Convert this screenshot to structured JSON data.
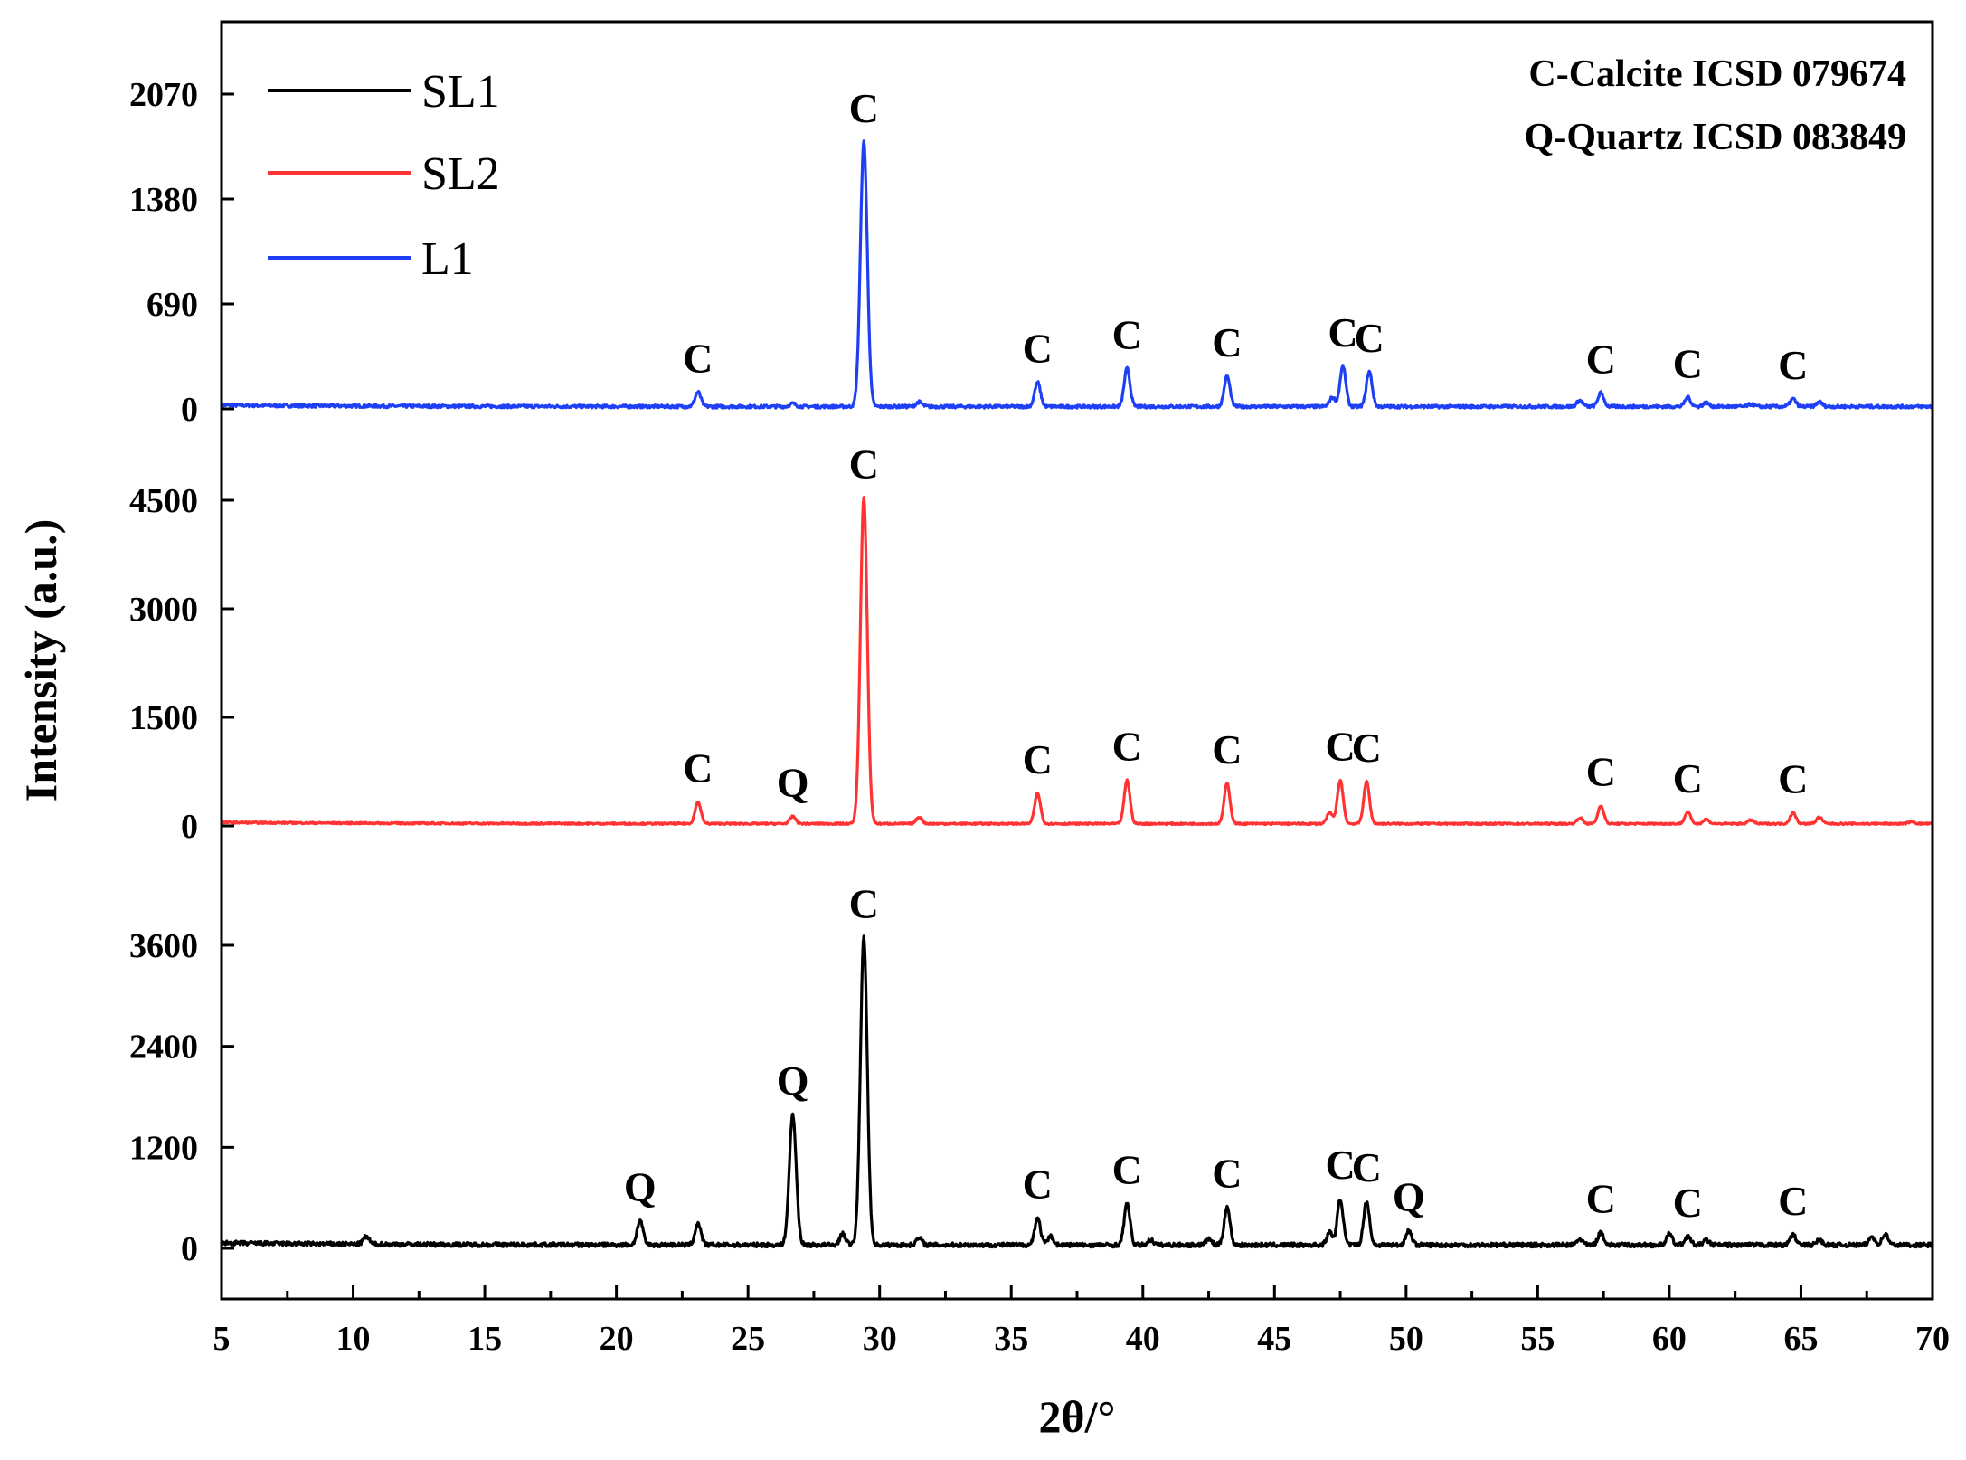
{
  "chart_data": {
    "type": "line",
    "title": "",
    "xlabel": "2θ/°",
    "ylabel": "Intensity (a.u.)",
    "xlim": [
      5,
      70
    ],
    "x_ticks": [
      5,
      10,
      15,
      20,
      25,
      30,
      35,
      40,
      45,
      50,
      55,
      60,
      65,
      70
    ],
    "legend": {
      "position": "top-left",
      "entries": [
        "SL1",
        "SL2",
        "L1"
      ]
    },
    "annotations": [
      "C-Calcite ICSD 079674",
      "Q-Quartz ICSD 083849"
    ],
    "grid": false,
    "colors": {
      "SL1": "#000000",
      "SL2": "#ff3333",
      "L1": "#1f3ff5"
    },
    "series": [
      {
        "name": "L1",
        "color": "#1f3ff5",
        "y_ticks": [
          0,
          690,
          1380,
          2070
        ],
        "baseline": 15,
        "noise": 10,
        "peaks": [
          {
            "x": 23.1,
            "y": 95,
            "label": "C"
          },
          {
            "x": 26.7,
            "y": 20,
            "label": ""
          },
          {
            "x": 29.4,
            "y": 1740,
            "label": "C"
          },
          {
            "x": 31.5,
            "y": 30,
            "label": ""
          },
          {
            "x": 36.0,
            "y": 160,
            "label": "C"
          },
          {
            "x": 39.4,
            "y": 250,
            "label": "C"
          },
          {
            "x": 43.2,
            "y": 200,
            "label": "C"
          },
          {
            "x": 47.2,
            "y": 60,
            "label": ""
          },
          {
            "x": 47.6,
            "y": 265,
            "label": "C"
          },
          {
            "x": 48.6,
            "y": 230,
            "label": "C"
          },
          {
            "x": 56.6,
            "y": 40,
            "label": ""
          },
          {
            "x": 57.4,
            "y": 90,
            "label": "C"
          },
          {
            "x": 60.7,
            "y": 60,
            "label": "C"
          },
          {
            "x": 61.4,
            "y": 25,
            "label": ""
          },
          {
            "x": 63.1,
            "y": 15,
            "label": ""
          },
          {
            "x": 64.7,
            "y": 50,
            "label": "C"
          },
          {
            "x": 65.7,
            "y": 30,
            "label": ""
          }
        ]
      },
      {
        "name": "SL2",
        "color": "#ff3333",
        "y_ticks": [
          0,
          1500,
          3000,
          4500
        ],
        "baseline": 30,
        "noise": 12,
        "peaks": [
          {
            "x": 23.1,
            "y": 300,
            "label": "C"
          },
          {
            "x": 26.7,
            "y": 100,
            "label": "Q"
          },
          {
            "x": 29.4,
            "y": 4500,
            "label": "C"
          },
          {
            "x": 31.5,
            "y": 90,
            "label": ""
          },
          {
            "x": 36.0,
            "y": 420,
            "label": "C"
          },
          {
            "x": 39.4,
            "y": 600,
            "label": "C"
          },
          {
            "x": 43.2,
            "y": 560,
            "label": "C"
          },
          {
            "x": 47.1,
            "y": 150,
            "label": ""
          },
          {
            "x": 47.5,
            "y": 600,
            "label": "C"
          },
          {
            "x": 48.5,
            "y": 580,
            "label": "C"
          },
          {
            "x": 56.6,
            "y": 80,
            "label": ""
          },
          {
            "x": 57.4,
            "y": 250,
            "label": "C"
          },
          {
            "x": 60.7,
            "y": 160,
            "label": "C"
          },
          {
            "x": 61.4,
            "y": 60,
            "label": ""
          },
          {
            "x": 63.1,
            "y": 50,
            "label": ""
          },
          {
            "x": 64.7,
            "y": 150,
            "label": "C"
          },
          {
            "x": 65.7,
            "y": 90,
            "label": ""
          },
          {
            "x": 69.2,
            "y": 30,
            "label": ""
          }
        ]
      },
      {
        "name": "SL1",
        "color": "#000000",
        "y_ticks": [
          0,
          1200,
          2400,
          3600
        ],
        "baseline": 40,
        "noise": 25,
        "peaks": [
          {
            "x": 10.5,
            "y": 90,
            "label": ""
          },
          {
            "x": 20.9,
            "y": 290,
            "label": "Q"
          },
          {
            "x": 23.1,
            "y": 260,
            "label": ""
          },
          {
            "x": 26.7,
            "y": 1550,
            "label": "Q"
          },
          {
            "x": 28.6,
            "y": 130,
            "label": ""
          },
          {
            "x": 29.4,
            "y": 3650,
            "label": "C"
          },
          {
            "x": 31.5,
            "y": 80,
            "label": ""
          },
          {
            "x": 36.0,
            "y": 320,
            "label": "C"
          },
          {
            "x": 36.5,
            "y": 100,
            "label": ""
          },
          {
            "x": 39.4,
            "y": 490,
            "label": "C"
          },
          {
            "x": 40.3,
            "y": 60,
            "label": ""
          },
          {
            "x": 42.5,
            "y": 70,
            "label": ""
          },
          {
            "x": 43.2,
            "y": 450,
            "label": "C"
          },
          {
            "x": 47.1,
            "y": 150,
            "label": ""
          },
          {
            "x": 47.5,
            "y": 550,
            "label": "C"
          },
          {
            "x": 48.5,
            "y": 520,
            "label": "C"
          },
          {
            "x": 50.1,
            "y": 170,
            "label": "Q"
          },
          {
            "x": 56.6,
            "y": 70,
            "label": ""
          },
          {
            "x": 57.4,
            "y": 150,
            "label": "C"
          },
          {
            "x": 60.0,
            "y": 130,
            "label": ""
          },
          {
            "x": 60.7,
            "y": 100,
            "label": "C"
          },
          {
            "x": 61.4,
            "y": 60,
            "label": ""
          },
          {
            "x": 64.7,
            "y": 120,
            "label": "C"
          },
          {
            "x": 65.7,
            "y": 60,
            "label": ""
          },
          {
            "x": 67.7,
            "y": 100,
            "label": ""
          },
          {
            "x": 68.2,
            "y": 130,
            "label": ""
          }
        ]
      }
    ]
  }
}
